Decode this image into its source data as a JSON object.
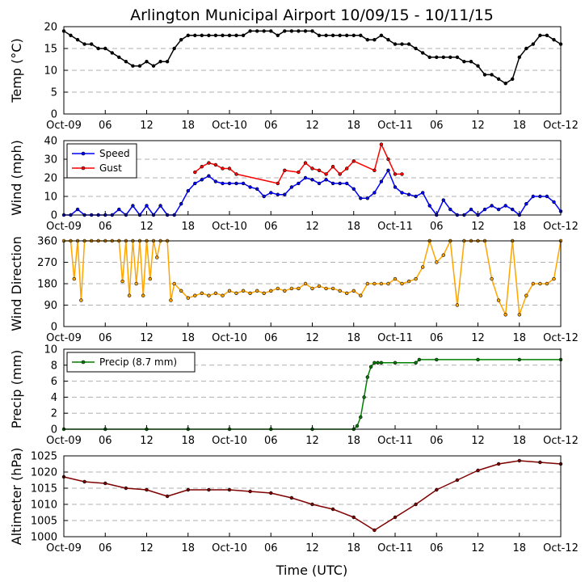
{
  "chart_data": {
    "title": "Arlington Municipal Airport 10/09/15 - 10/11/15",
    "xlabel": "Time (UTC)",
    "x_unit": "hours since Oct-09 00 UTC",
    "x_ticks": [
      0,
      6,
      12,
      18,
      24,
      30,
      36,
      42,
      48,
      54,
      60,
      66,
      72
    ],
    "x_tick_labels": [
      "Oct-09",
      "06",
      "12",
      "18",
      "Oct-10",
      "06",
      "12",
      "18",
      "Oct-11",
      "06",
      "12",
      "18",
      "Oct-12"
    ],
    "panels": [
      {
        "id": "temp",
        "type": "line",
        "ylabel": "Temp (°C)",
        "ylim": [
          0,
          20
        ],
        "yticks": [
          0,
          5,
          10,
          15,
          20
        ],
        "grid": true,
        "series": [
          {
            "name": "Temp",
            "color": "#000000",
            "x": [
              0,
              1,
              2,
              3,
              4,
              5,
              6,
              7,
              8,
              9,
              10,
              11,
              12,
              13,
              14,
              15,
              16,
              17,
              18,
              19,
              20,
              21,
              22,
              23,
              24,
              25,
              26,
              27,
              28,
              29,
              30,
              31,
              32,
              33,
              34,
              35,
              36,
              37,
              38,
              39,
              40,
              41,
              42,
              43,
              44,
              45,
              46,
              47,
              48,
              49,
              50,
              51,
              52,
              53,
              54,
              55,
              56,
              57,
              58,
              59,
              60,
              61,
              62,
              63,
              64,
              65,
              66,
              67,
              68,
              69,
              70,
              71,
              72
            ],
            "y": [
              19,
              18,
              17,
              16,
              16,
              15,
              15,
              14,
              13,
              12,
              11,
              11,
              12,
              11,
              12,
              12,
              15,
              17,
              18,
              18,
              18,
              18,
              18,
              18,
              18,
              18,
              18,
              19,
              19,
              19,
              19,
              18,
              19,
              19,
              19,
              19,
              19,
              18,
              18,
              18,
              18,
              18,
              18,
              18,
              17,
              17,
              18,
              17,
              16,
              16,
              16,
              15,
              14,
              13,
              13,
              13,
              13,
              13,
              12,
              12,
              11,
              9,
              9,
              8,
              7,
              8,
              13,
              15,
              16,
              18,
              18,
              17,
              16
            ]
          }
        ]
      },
      {
        "id": "wind",
        "type": "line",
        "ylabel": "Wind (mph)",
        "ylim": [
          0,
          40
        ],
        "yticks": [
          0,
          10,
          20,
          30,
          40
        ],
        "grid": true,
        "legend": {
          "position": "top-left",
          "entries": [
            "Speed",
            "Gust"
          ]
        },
        "series": [
          {
            "name": "Speed",
            "color": "#0000ff",
            "x": [
              0,
              1,
              2,
              3,
              4,
              5,
              6,
              7,
              8,
              9,
              10,
              11,
              12,
              13,
              14,
              15,
              16,
              17,
              18,
              19,
              20,
              21,
              22,
              23,
              24,
              25,
              26,
              27,
              28,
              29,
              30,
              31,
              32,
              33,
              34,
              35,
              36,
              37,
              38,
              39,
              40,
              41,
              42,
              43,
              44,
              45,
              46,
              47,
              48,
              49,
              50,
              51,
              52,
              53,
              54,
              55,
              56,
              57,
              58,
              59,
              60,
              61,
              62,
              63,
              64,
              65,
              66,
              67,
              68,
              69,
              70,
              71,
              72
            ],
            "y": [
              0,
              0,
              3,
              0,
              0,
              0,
              0,
              0,
              3,
              0,
              5,
              0,
              5,
              0,
              5,
              0,
              0,
              6,
              13,
              17,
              19,
              21,
              18,
              17,
              17,
              17,
              17,
              15,
              14,
              10,
              12,
              11,
              11,
              15,
              17,
              20,
              19,
              17,
              19,
              17,
              17,
              17,
              14,
              9,
              9,
              12,
              18,
              24,
              15,
              12,
              11,
              10,
              12,
              5,
              0,
              8,
              3,
              0,
              0,
              3,
              0,
              3,
              5,
              3,
              5,
              3,
              0,
              6,
              10,
              10,
              10,
              7,
              2
            ]
          },
          {
            "name": "Gust",
            "color": "#ff0000",
            "x": [
              19,
              20,
              21,
              22,
              23,
              24,
              25,
              31,
              32,
              34,
              35,
              36,
              37,
              38,
              39,
              40,
              41,
              42,
              45,
              46,
              47,
              48,
              49
            ],
            "y": [
              23,
              26,
              28,
              27,
              25,
              25,
              22,
              17,
              24,
              23,
              28,
              25,
              24,
              22,
              26,
              22,
              25,
              29,
              24,
              38,
              30,
              22,
              22
            ]
          }
        ]
      },
      {
        "id": "winddir",
        "type": "line",
        "ylabel": "Wind Direction",
        "ylim": [
          0,
          360
        ],
        "yticks": [
          0,
          90,
          180,
          270,
          360
        ],
        "grid": true,
        "series": [
          {
            "name": "Direction",
            "color": "#ffa500",
            "x": [
              0,
              1,
              1.5,
              2,
              2.5,
              3,
              4,
              5,
              6,
              7,
              8,
              8.5,
              9,
              9.5,
              10,
              10.5,
              11,
              11.5,
              12,
              12.5,
              13,
              13.5,
              14,
              15,
              15.5,
              16,
              17,
              18,
              19,
              20,
              21,
              22,
              23,
              24,
              25,
              26,
              27,
              28,
              29,
              30,
              31,
              32,
              33,
              34,
              35,
              36,
              37,
              38,
              39,
              40,
              41,
              42,
              43,
              44,
              45,
              46,
              47,
              48,
              49,
              50,
              51,
              52,
              53,
              54,
              55,
              56,
              57,
              58,
              59,
              60,
              61,
              62,
              63,
              64,
              65,
              66,
              67,
              68,
              69,
              70,
              71,
              72
            ],
            "y": [
              360,
              360,
              200,
              360,
              110,
              360,
              360,
              360,
              360,
              360,
              360,
              190,
              360,
              130,
              360,
              180,
              360,
              130,
              360,
              200,
              360,
              290,
              360,
              360,
              110,
              180,
              150,
              120,
              130,
              140,
              130,
              140,
              130,
              150,
              140,
              150,
              140,
              150,
              140,
              150,
              160,
              150,
              160,
              160,
              180,
              160,
              170,
              160,
              160,
              150,
              140,
              150,
              130,
              180,
              180,
              180,
              180,
              200,
              180,
              190,
              200,
              250,
              360,
              270,
              300,
              360,
              90,
              360,
              360,
              360,
              360,
              200,
              110,
              50,
              360,
              50,
              130,
              180,
              180,
              180,
              200,
              360
            ]
          }
        ]
      },
      {
        "id": "precip",
        "type": "line",
        "ylabel": "Precip (mm)",
        "ylim": [
          0,
          10
        ],
        "yticks": [
          0,
          2,
          4,
          6,
          8,
          10
        ],
        "grid": true,
        "legend": {
          "position": "top-left",
          "entries": [
            "Precip (8.7 mm)"
          ]
        },
        "series": [
          {
            "name": "Precip (8.7 mm)",
            "color": "#008000",
            "x": [
              0,
              6,
              12,
              18,
              24,
              30,
              36,
              42,
              42.5,
              43,
              43.5,
              44,
              44.5,
              45,
              45.5,
              46,
              48,
              51,
              51.5,
              54,
              60,
              66,
              72
            ],
            "y": [
              0,
              0,
              0,
              0,
              0,
              0,
              0,
              0,
              0.4,
              1.5,
              4.0,
              6.5,
              7.8,
              8.3,
              8.3,
              8.3,
              8.3,
              8.3,
              8.7,
              8.7,
              8.7,
              8.7,
              8.7
            ]
          }
        ]
      },
      {
        "id": "altimeter",
        "type": "line",
        "ylabel": "Altimeter (hPa)",
        "ylim": [
          1000,
          1025
        ],
        "yticks": [
          1000,
          1005,
          1010,
          1015,
          1020,
          1025
        ],
        "grid": true,
        "series": [
          {
            "name": "Altimeter",
            "color": "#800000",
            "x": [
              0,
              3,
              6,
              9,
              12,
              15,
              18,
              21,
              24,
              27,
              30,
              33,
              36,
              39,
              42,
              45,
              48,
              51,
              54,
              57,
              60,
              63,
              66,
              69,
              72
            ],
            "y": [
              1018.5,
              1017,
              1016.5,
              1015,
              1014.5,
              1012.5,
              1014.5,
              1014.5,
              1014.5,
              1014,
              1013.5,
              1012,
              1010,
              1008.5,
              1006,
              1002,
              1006,
              1010,
              1014.5,
              1017.5,
              1020.5,
              1022.5,
              1023.5,
              1023,
              1022.5
            ]
          }
        ]
      }
    ]
  }
}
